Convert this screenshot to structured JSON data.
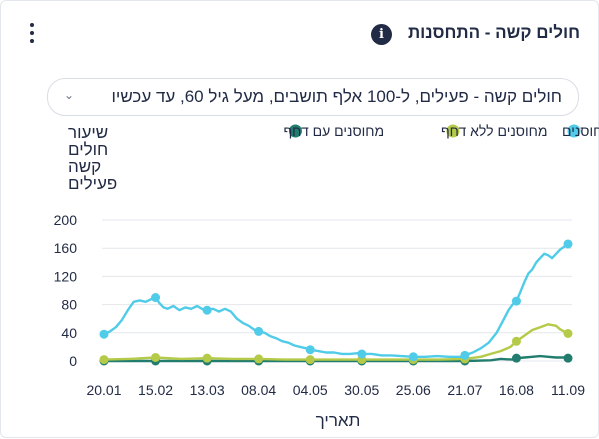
{
  "widget": {
    "title": "חולים קשה - התחסנות",
    "info_glyph": "i",
    "menu_icon": "kebab-menu-icon",
    "select_value": "חולים קשה - פעילים, ל-100 אלף תושבים, מעל גיל 60, עד עכשיו",
    "select_icon": "chevron-down-icon"
  },
  "colors": {
    "unvaccinated": "#50cbe8",
    "vaccinated_no_booster": "#b5ca48",
    "vaccinated_booster": "#237d6e",
    "grid": "#e4e7ec",
    "text": "#222b45"
  },
  "chart_data": {
    "type": "line",
    "ylabel": [
      "שיעור",
      "חולים",
      "קשה",
      "פעילים"
    ],
    "xlabel": "תאריך",
    "ylim": [
      0,
      200
    ],
    "yticks": [
      0,
      40,
      80,
      120,
      160,
      200
    ],
    "x_ticks": [
      "20.01",
      "15.02",
      "13.03",
      "08.04",
      "04.05",
      "30.05",
      "25.06",
      "21.07",
      "16.08",
      "11.09"
    ],
    "x_tick_positions": [
      0,
      26,
      52,
      78,
      104,
      130,
      156,
      182,
      208,
      234
    ],
    "x_max": 234,
    "legend_position": "top",
    "series": [
      {
        "name": "לא מחוסנים",
        "color_key": "unvaccinated",
        "x": [
          0,
          3,
          6,
          9,
          12,
          15,
          18,
          21,
          24,
          26,
          28,
          30,
          32,
          35,
          38,
          41,
          44,
          47,
          50,
          52,
          55,
          58,
          61,
          64,
          67,
          70,
          73,
          76,
          78,
          81,
          84,
          87,
          90,
          93,
          96,
          99,
          102,
          104,
          108,
          112,
          116,
          120,
          124,
          128,
          130,
          135,
          140,
          145,
          150,
          156,
          162,
          168,
          174,
          180,
          182,
          186,
          190,
          194,
          198,
          201,
          204,
          206,
          208,
          210,
          212,
          214,
          216,
          218,
          220,
          222,
          224,
          226,
          228,
          230,
          232,
          234
        ],
        "y": [
          38,
          42,
          48,
          58,
          72,
          84,
          86,
          84,
          88,
          90,
          82,
          76,
          74,
          78,
          72,
          76,
          74,
          78,
          73,
          72,
          74,
          70,
          74,
          70,
          60,
          54,
          50,
          44,
          42,
          40,
          35,
          32,
          28,
          26,
          22,
          20,
          18,
          16,
          14,
          12,
          12,
          10,
          10,
          11,
          10,
          10,
          8,
          8,
          7,
          6,
          6,
          7,
          6,
          6,
          8,
          12,
          18,
          26,
          40,
          56,
          72,
          80,
          85,
          98,
          112,
          124,
          130,
          140,
          146,
          152,
          150,
          146,
          152,
          158,
          162,
          166
        ]
      },
      {
        "name": "מחוסנים ללא דחף",
        "color_key": "vaccinated_no_booster",
        "x": [
          0,
          13,
          26,
          39,
          52,
          65,
          78,
          91,
          104,
          117,
          130,
          143,
          156,
          169,
          182,
          190,
          195,
          200,
          205,
          208,
          212,
          216,
          220,
          224,
          228,
          230,
          232,
          234
        ],
        "y": [
          2,
          3,
          5,
          3,
          4,
          3,
          3,
          2,
          2,
          2,
          2,
          2,
          2,
          2,
          3,
          6,
          10,
          14,
          20,
          28,
          36,
          44,
          48,
          52,
          50,
          45,
          42,
          39
        ]
      },
      {
        "name": "מחוסנים עם דחף",
        "color_key": "vaccinated_booster",
        "x": [
          0,
          26,
          52,
          78,
          104,
          130,
          156,
          182,
          195,
          200,
          206,
          208,
          212,
          216,
          220,
          224,
          228,
          232,
          234
        ],
        "y": [
          0,
          0,
          0,
          0,
          0,
          0,
          0,
          0,
          1,
          3,
          2,
          4,
          5,
          6,
          7,
          6,
          5,
          5,
          4
        ]
      }
    ]
  }
}
